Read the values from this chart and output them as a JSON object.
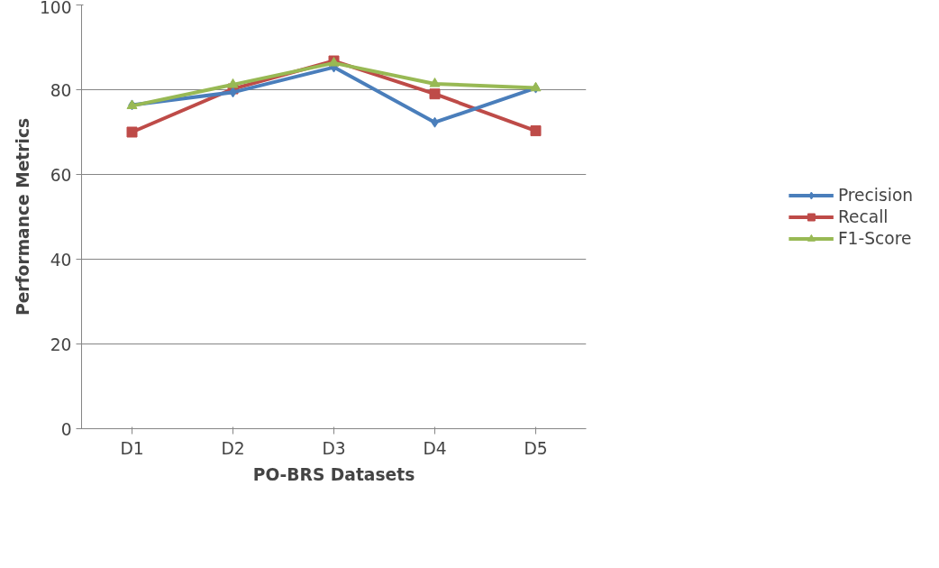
{
  "chart_data": {
    "type": "line",
    "xlabel": "PO-BRS Datasets",
    "ylabel": "Performance Metrics",
    "categories": [
      "D1",
      "D2",
      "D3",
      "D4",
      "D5"
    ],
    "series": [
      {
        "name": "Precision",
        "color": "#4a7ebb",
        "marker": "diamond",
        "values": [
          76.4,
          79.4,
          85.3,
          72.3,
          80.4
        ]
      },
      {
        "name": "Recall",
        "color": "#be4b48",
        "marker": "square",
        "values": [
          70,
          80.2,
          86.8,
          79,
          70.3
        ]
      },
      {
        "name": "F1-Score",
        "color": "#98b954",
        "marker": "triangle",
        "values": [
          76.2,
          81.2,
          86.3,
          81.4,
          80.4
        ]
      }
    ],
    "ylim": [
      0,
      100
    ],
    "yticks": [
      0,
      20,
      40,
      60,
      80,
      100
    ],
    "grid": "y",
    "legend": "right"
  }
}
